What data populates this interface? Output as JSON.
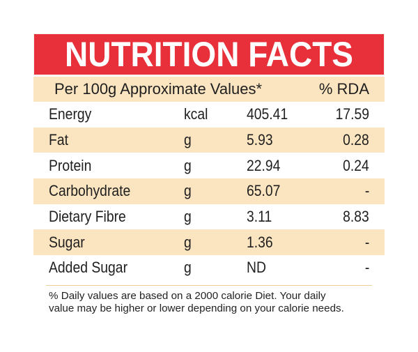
{
  "title": "NUTRITION FACTS",
  "header": {
    "left": "Per 100g Approximate Values*",
    "right": "% RDA"
  },
  "rows": [
    {
      "name": "Energy",
      "unit": "kcal",
      "value": "405.41",
      "rda": "17.59"
    },
    {
      "name": "Fat",
      "unit": "g",
      "value": "5.93",
      "rda": "0.28"
    },
    {
      "name": "Protein",
      "unit": "g",
      "value": "22.94",
      "rda": "0.24"
    },
    {
      "name": "Carbohydrate",
      "unit": "g",
      "value": "65.07",
      "rda": "-"
    },
    {
      "name": "Dietary Fibre",
      "unit": "g",
      "value": "3.11",
      "rda": "8.83"
    },
    {
      "name": "Sugar",
      "unit": "g",
      "value": "1.36",
      "rda": "-"
    },
    {
      "name": "Added Sugar",
      "unit": "g",
      "value": "ND",
      "rda": "-"
    }
  ],
  "footnote": {
    "line1": "% Daily values are based on a 2000 calorie Diet. Your daily",
    "line2": "value may be higher or lower depending on your calorie needs."
  },
  "colors": {
    "title_bg": "#e8303a",
    "title_text": "#ffffff",
    "band_bg": "#fbe4c0"
  }
}
